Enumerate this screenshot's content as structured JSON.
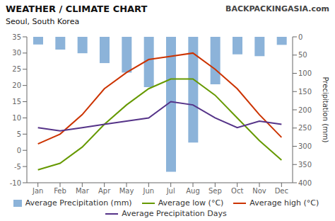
{
  "chart_data": {
    "type": "combo",
    "title": "WEATHER / CLIMATE CHART",
    "subtitle": "Seoul, South Korea",
    "annotations": [
      "BACKPACKINGASIA.com"
    ],
    "categories": [
      "Jan",
      "Feb",
      "Mar",
      "Apr",
      "May",
      "Jun",
      "Jul",
      "Aug",
      "Sep",
      "Oct",
      "Nov",
      "Dec"
    ],
    "y2_label": "Precipitation (mm)",
    "ylim": [
      -10,
      35
    ],
    "yticks": [
      -10,
      -5,
      0,
      5,
      10,
      15,
      20,
      25,
      30,
      35
    ],
    "y2lim": [
      400,
      0
    ],
    "y2ticks": [
      0,
      50,
      100,
      150,
      200,
      250,
      300,
      350,
      400
    ],
    "grid": false,
    "legend": "bottom",
    "series": [
      {
        "name": "Average Precipitation (mm)",
        "type": "bar",
        "axis": "y2",
        "color": "#6699CC",
        "values": [
          21,
          35,
          45,
          72,
          98,
          138,
          370,
          290,
          130,
          48,
          53,
          22
        ]
      },
      {
        "name": "Average low (°C)",
        "type": "line",
        "axis": "y",
        "color": "#669900",
        "values": [
          -6,
          -4,
          1,
          8,
          14,
          19,
          22,
          22,
          17,
          10,
          3,
          -3
        ]
      },
      {
        "name": "Average high (°C)",
        "type": "line",
        "axis": "y",
        "color": "#CC3300",
        "values": [
          2,
          5,
          11,
          19,
          24,
          28,
          29,
          30,
          25,
          19,
          11,
          4
        ]
      },
      {
        "name": "Average Precipitation Days",
        "type": "line",
        "axis": "y",
        "color": "#553388",
        "values": [
          7,
          6,
          7,
          8,
          9,
          10,
          15,
          14,
          10,
          7,
          9,
          8
        ]
      }
    ]
  }
}
